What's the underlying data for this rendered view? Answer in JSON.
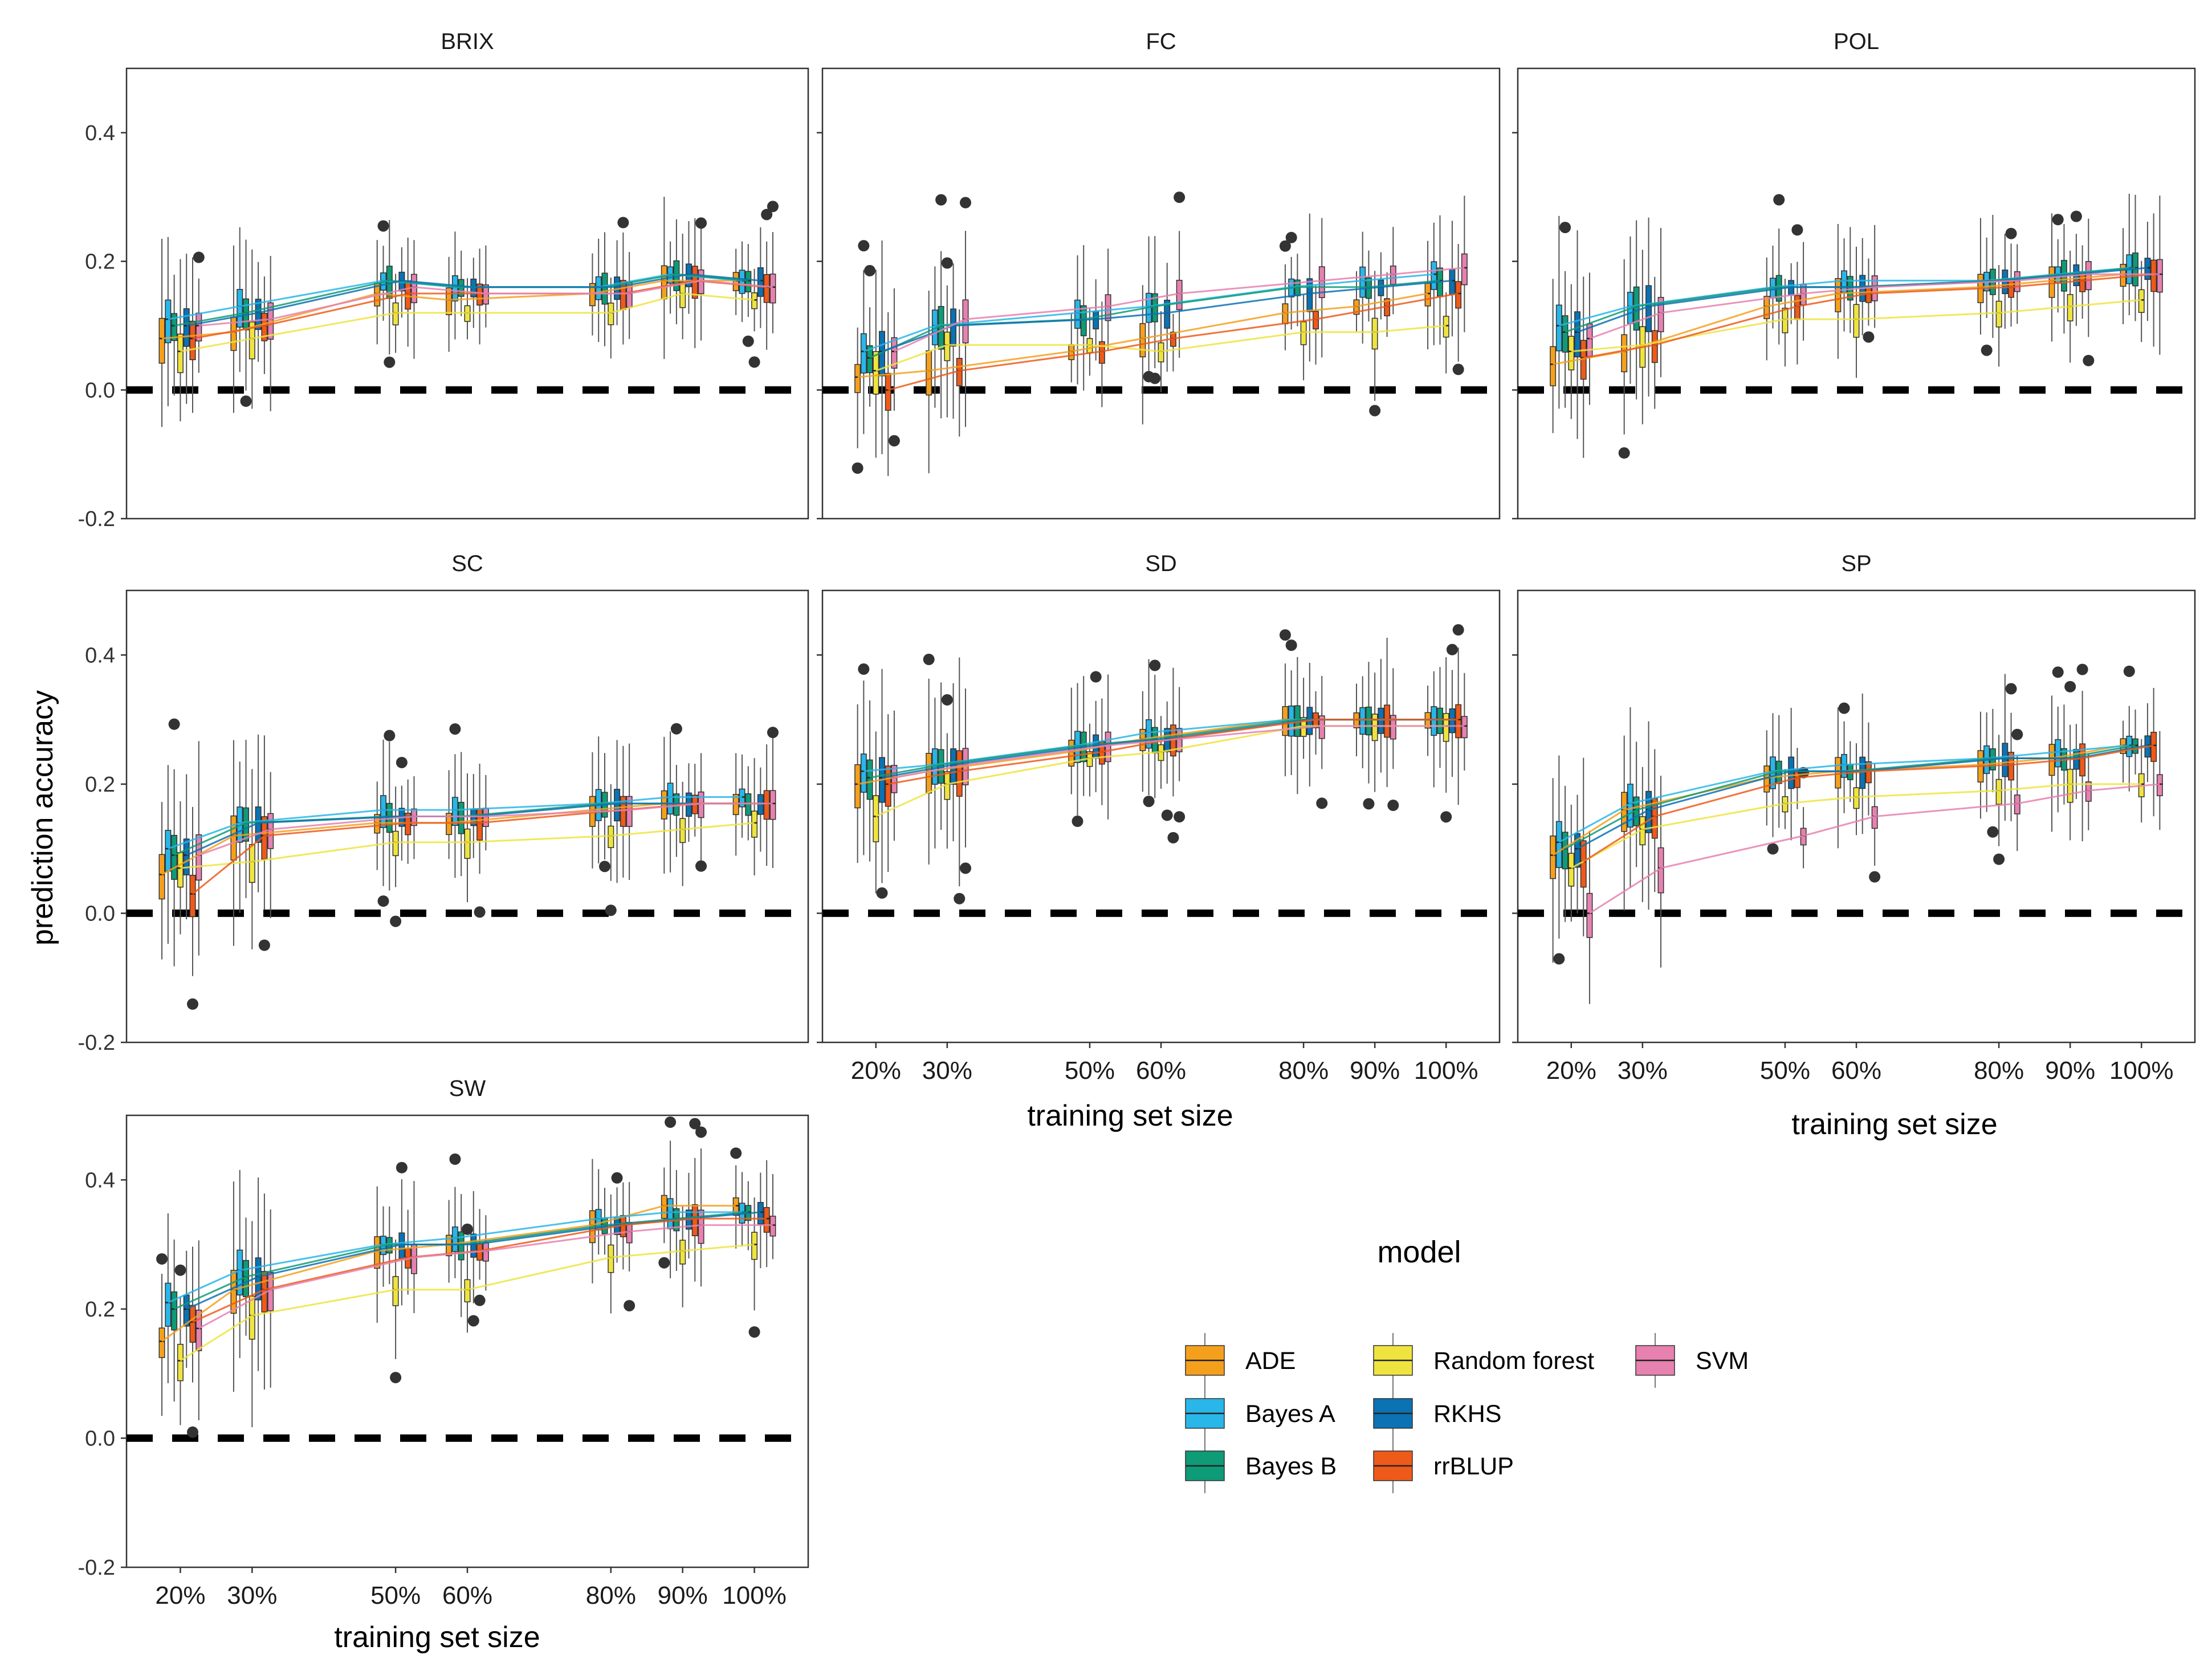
{
  "chart_data": {
    "type": "box",
    "ylabel": "prediction accuracy",
    "xlabel": "training set size",
    "ylim": [
      -0.2,
      0.5
    ],
    "yticks": [
      "0.4",
      "0.2",
      "0.0",
      "-0.2"
    ],
    "ytick_values": [
      0.4,
      0.2,
      0.0,
      -0.2
    ],
    "categories": [
      "20%",
      "30%",
      "50%",
      "60%",
      "80%",
      "90%",
      "100%"
    ],
    "x_values": [
      20,
      30,
      50,
      60,
      80,
      90,
      100
    ],
    "reference_line": 0.0,
    "legend": {
      "title": "model",
      "items": [
        {
          "name": "ADE",
          "color": "#F5A01D"
        },
        {
          "name": "Bayes A",
          "color": "#29B6E8"
        },
        {
          "name": "Bayes B",
          "color": "#0E9B77"
        },
        {
          "name": "Random forest",
          "color": "#EFE43F"
        },
        {
          "name": "RKHS",
          "color": "#0B72B3"
        },
        {
          "name": "rrBLUP",
          "color": "#EE5A1A"
        },
        {
          "name": "SVM",
          "color": "#E681B0"
        }
      ]
    },
    "panels": [
      {
        "title": "BRIX",
        "series": [
          {
            "name": "ADE",
            "values": [
              0.08,
              0.09,
              0.15,
              0.14,
              0.15,
              0.17,
              0.17
            ]
          },
          {
            "name": "Bayes A",
            "values": [
              0.11,
              0.13,
              0.17,
              0.16,
              0.16,
              0.18,
              0.17
            ]
          },
          {
            "name": "Bayes B",
            "values": [
              0.1,
              0.12,
              0.17,
              0.16,
              0.16,
              0.18,
              0.17
            ]
          },
          {
            "name": "Random forest",
            "values": [
              0.06,
              0.08,
              0.12,
              0.12,
              0.12,
              0.15,
              0.14
            ]
          },
          {
            "name": "RKHS",
            "values": [
              0.1,
              0.12,
              0.17,
              0.16,
              0.16,
              0.18,
              0.17
            ]
          },
          {
            "name": "rrBLUP",
            "values": [
              0.08,
              0.1,
              0.15,
              0.15,
              0.15,
              0.17,
              0.16
            ]
          },
          {
            "name": "SVM",
            "values": [
              0.1,
              0.11,
              0.16,
              0.15,
              0.15,
              0.17,
              0.16
            ]
          }
        ]
      },
      {
        "title": "FC",
        "series": [
          {
            "name": "ADE",
            "values": [
              0.02,
              0.03,
              0.06,
              0.08,
              0.12,
              0.13,
              0.15
            ]
          },
          {
            "name": "Bayes A",
            "values": [
              0.06,
              0.1,
              0.12,
              0.13,
              0.16,
              0.17,
              0.18
            ]
          },
          {
            "name": "Bayes B",
            "values": [
              0.05,
              0.1,
              0.11,
              0.13,
              0.16,
              0.16,
              0.17
            ]
          },
          {
            "name": "Random forest",
            "values": [
              0.03,
              0.07,
              0.07,
              0.06,
              0.09,
              0.09,
              0.1
            ]
          },
          {
            "name": "RKHS",
            "values": [
              0.06,
              0.1,
              0.11,
              0.12,
              0.15,
              0.16,
              0.17
            ]
          },
          {
            "name": "rrBLUP",
            "values": [
              0.0,
              0.03,
              0.06,
              0.08,
              0.11,
              0.13,
              0.15
            ]
          },
          {
            "name": "SVM",
            "values": [
              0.06,
              0.11,
              0.13,
              0.15,
              0.17,
              0.18,
              0.19
            ]
          }
        ]
      },
      {
        "title": "POL",
        "series": [
          {
            "name": "ADE",
            "values": [
              0.04,
              0.06,
              0.13,
              0.15,
              0.16,
              0.17,
              0.18
            ]
          },
          {
            "name": "Bayes A",
            "values": [
              0.1,
              0.13,
              0.16,
              0.17,
              0.17,
              0.18,
              0.19
            ]
          },
          {
            "name": "Bayes B",
            "values": [
              0.09,
              0.13,
              0.16,
              0.16,
              0.17,
              0.18,
              0.19
            ]
          },
          {
            "name": "Random forest",
            "values": [
              0.06,
              0.07,
              0.11,
              0.11,
              0.12,
              0.13,
              0.14
            ]
          },
          {
            "name": "RKHS",
            "values": [
              0.09,
              0.13,
              0.16,
              0.16,
              0.17,
              0.18,
              0.19
            ]
          },
          {
            "name": "rrBLUP",
            "values": [
              0.05,
              0.07,
              0.13,
              0.15,
              0.16,
              0.17,
              0.18
            ]
          },
          {
            "name": "SVM",
            "values": [
              0.08,
              0.12,
              0.15,
              0.16,
              0.17,
              0.18,
              0.18
            ]
          }
        ]
      },
      {
        "title": "SC",
        "series": [
          {
            "name": "ADE",
            "values": [
              0.06,
              0.12,
              0.14,
              0.14,
              0.16,
              0.17,
              0.17
            ]
          },
          {
            "name": "Bayes A",
            "values": [
              0.1,
              0.14,
              0.16,
              0.16,
              0.17,
              0.18,
              0.18
            ]
          },
          {
            "name": "Bayes B",
            "values": [
              0.09,
              0.14,
              0.15,
              0.15,
              0.17,
              0.17,
              0.17
            ]
          },
          {
            "name": "Random forest",
            "values": [
              0.07,
              0.08,
              0.11,
              0.11,
              0.12,
              0.13,
              0.14
            ]
          },
          {
            "name": "RKHS",
            "values": [
              0.09,
              0.14,
              0.15,
              0.15,
              0.17,
              0.17,
              0.17
            ]
          },
          {
            "name": "rrBLUP",
            "values": [
              0.03,
              0.12,
              0.14,
              0.14,
              0.16,
              0.17,
              0.17
            ]
          },
          {
            "name": "SVM",
            "values": [
              0.09,
              0.13,
              0.15,
              0.15,
              0.16,
              0.17,
              0.17
            ]
          }
        ]
      },
      {
        "title": "SD",
        "series": [
          {
            "name": "ADE",
            "values": [
              0.2,
              0.22,
              0.25,
              0.27,
              0.3,
              0.3,
              0.3
            ]
          },
          {
            "name": "Bayes A",
            "values": [
              0.22,
              0.23,
              0.26,
              0.28,
              0.3,
              0.3,
              0.3
            ]
          },
          {
            "name": "Bayes B",
            "values": [
              0.21,
              0.23,
              0.26,
              0.27,
              0.3,
              0.3,
              0.3
            ]
          },
          {
            "name": "Random forest",
            "values": [
              0.15,
              0.2,
              0.24,
              0.25,
              0.29,
              0.29,
              0.29
            ]
          },
          {
            "name": "RKHS",
            "values": [
              0.21,
              0.23,
              0.26,
              0.27,
              0.3,
              0.3,
              0.3
            ]
          },
          {
            "name": "rrBLUP",
            "values": [
              0.2,
              0.22,
              0.25,
              0.27,
              0.3,
              0.3,
              0.3
            ]
          },
          {
            "name": "SVM",
            "values": [
              0.21,
              0.23,
              0.26,
              0.27,
              0.29,
              0.29,
              0.29
            ]
          }
        ]
      },
      {
        "title": "SP",
        "series": [
          {
            "name": "ADE",
            "values": [
              0.09,
              0.16,
              0.21,
              0.22,
              0.23,
              0.24,
              0.26
            ]
          },
          {
            "name": "Bayes A",
            "values": [
              0.11,
              0.17,
              0.22,
              0.23,
              0.24,
              0.25,
              0.26
            ]
          },
          {
            "name": "Bayes B",
            "values": [
              0.1,
              0.16,
              0.22,
              0.22,
              0.24,
              0.24,
              0.26
            ]
          },
          {
            "name": "Random forest",
            "values": [
              0.07,
              0.13,
              0.17,
              0.18,
              0.19,
              0.2,
              0.2
            ]
          },
          {
            "name": "RKHS",
            "values": [
              0.1,
              0.16,
              0.22,
              0.22,
              0.24,
              0.24,
              0.26
            ]
          },
          {
            "name": "rrBLUP",
            "values": [
              0.08,
              0.15,
              0.21,
              0.22,
              0.23,
              0.24,
              0.26
            ]
          },
          {
            "name": "SVM",
            "values": [
              0.0,
              0.07,
              0.12,
              0.15,
              0.17,
              0.19,
              0.2
            ]
          }
        ]
      },
      {
        "title": "SW",
        "series": [
          {
            "name": "ADE",
            "values": [
              0.15,
              0.23,
              0.29,
              0.3,
              0.33,
              0.36,
              0.36
            ]
          },
          {
            "name": "Bayes A",
            "values": [
              0.21,
              0.26,
              0.3,
              0.31,
              0.34,
              0.35,
              0.35
            ]
          },
          {
            "name": "Bayes B",
            "values": [
              0.2,
              0.25,
              0.3,
              0.3,
              0.33,
              0.34,
              0.35
            ]
          },
          {
            "name": "Random forest",
            "values": [
              0.12,
              0.19,
              0.23,
              0.23,
              0.28,
              0.29,
              0.3
            ]
          },
          {
            "name": "RKHS",
            "values": [
              0.2,
              0.25,
              0.3,
              0.3,
              0.33,
              0.34,
              0.35
            ]
          },
          {
            "name": "rrBLUP",
            "values": [
              0.18,
              0.23,
              0.28,
              0.29,
              0.33,
              0.34,
              0.34
            ]
          },
          {
            "name": "SVM",
            "values": [
              0.17,
              0.23,
              0.28,
              0.29,
              0.32,
              0.33,
              0.33
            ]
          }
        ]
      }
    ]
  }
}
